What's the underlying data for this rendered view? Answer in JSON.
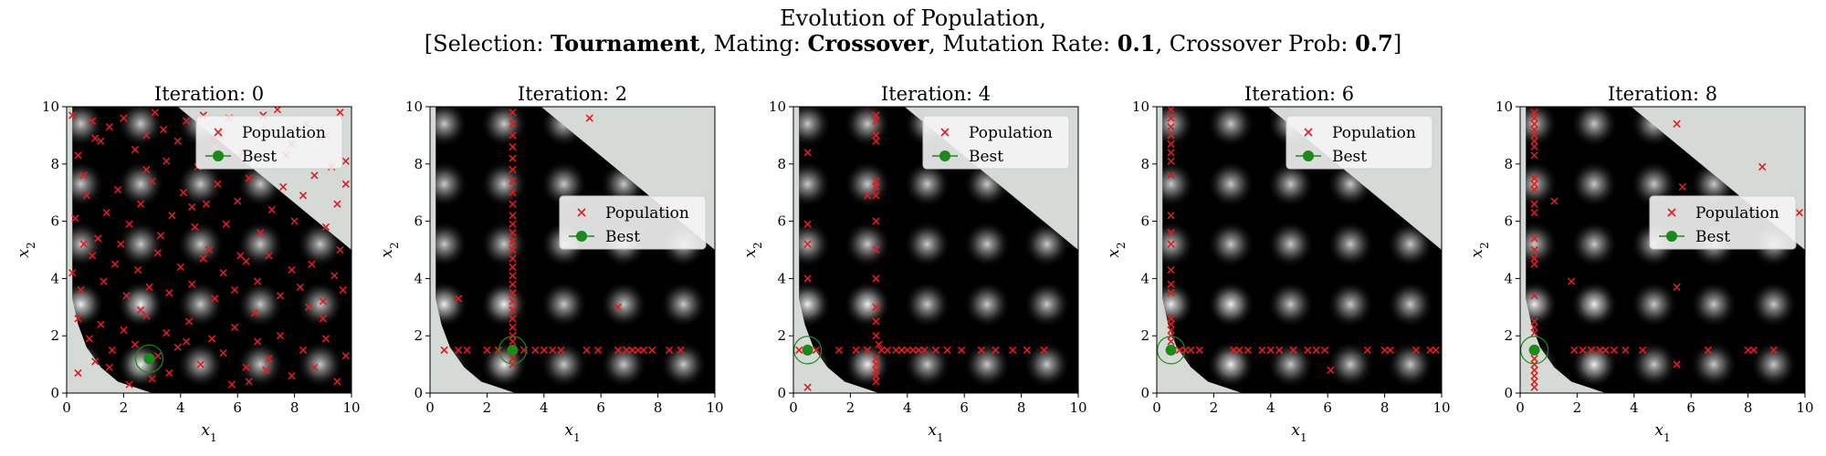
{
  "figure": {
    "title_line1": "Evolution of Population,",
    "subtitle": {
      "bracket_open": "[",
      "selection_label": "Selection: ",
      "selection_value": "Tournament",
      "mating_label": ", Mating: ",
      "mating_value": "Crossover",
      "mutation_label": ", Mutation Rate: ",
      "mutation_value": "0.1",
      "crossover_label": ", Crossover Prob: ",
      "crossover_value": "0.7",
      "bracket_close": "]"
    }
  },
  "colors": {
    "population": "#e41a1c",
    "best": "#1a8a1a",
    "infeasible": "#d6dad6"
  },
  "chart_data": [
    {
      "type": "scatter",
      "title": "Iteration: 0",
      "xlabel": "x1",
      "ylabel": "x2",
      "xlim": [
        0,
        10
      ],
      "ylim": [
        0,
        10
      ],
      "xticks": [
        0,
        2,
        4,
        6,
        8,
        10
      ],
      "yticks": [
        0,
        2,
        4,
        6,
        8,
        10
      ],
      "legend": {
        "entries": [
          "Population",
          "Best"
        ],
        "location": "top-right"
      },
      "best": [
        2.9,
        1.2
      ],
      "population": [
        [
          0.2,
          9.7
        ],
        [
          0.4,
          8.3
        ],
        [
          0.6,
          7.6
        ],
        [
          0.9,
          9.5
        ],
        [
          1.2,
          8.8
        ],
        [
          1.5,
          9.3
        ],
        [
          2.0,
          9.6
        ],
        [
          2.4,
          8.5
        ],
        [
          2.8,
          9.0
        ],
        [
          3.1,
          9.8
        ],
        [
          3.4,
          9.2
        ],
        [
          3.9,
          8.8
        ],
        [
          4.2,
          9.5
        ],
        [
          4.8,
          9.7
        ],
        [
          5.4,
          9.0
        ],
        [
          5.7,
          9.6
        ],
        [
          6.2,
          8.4
        ],
        [
          6.9,
          9.7
        ],
        [
          7.4,
          9.9
        ],
        [
          7.9,
          8.7
        ],
        [
          8.4,
          9.4
        ],
        [
          9.1,
          9.0
        ],
        [
          9.6,
          9.8
        ],
        [
          9.8,
          8.1
        ],
        [
          0.3,
          6.1
        ],
        [
          0.7,
          6.9
        ],
        [
          1.1,
          5.4
        ],
        [
          1.4,
          6.3
        ],
        [
          1.8,
          7.1
        ],
        [
          2.2,
          5.9
        ],
        [
          2.6,
          6.6
        ],
        [
          3.0,
          7.4
        ],
        [
          3.3,
          5.5
        ],
        [
          3.7,
          6.2
        ],
        [
          4.1,
          7.0
        ],
        [
          4.5,
          5.8
        ],
        [
          4.9,
          6.6
        ],
        [
          5.3,
          7.3
        ],
        [
          5.6,
          5.9
        ],
        [
          6.0,
          6.7
        ],
        [
          6.4,
          7.5
        ],
        [
          6.8,
          5.6
        ],
        [
          7.2,
          6.4
        ],
        [
          7.6,
          7.2
        ],
        [
          8.0,
          6.0
        ],
        [
          8.3,
          6.9
        ],
        [
          8.7,
          7.6
        ],
        [
          9.1,
          5.8
        ],
        [
          9.5,
          6.6
        ],
        [
          9.8,
          7.3
        ],
        [
          0.2,
          4.2
        ],
        [
          0.5,
          3.6
        ],
        [
          0.9,
          4.8
        ],
        [
          1.3,
          3.9
        ],
        [
          1.7,
          4.5
        ],
        [
          2.1,
          3.4
        ],
        [
          2.5,
          4.3
        ],
        [
          2.9,
          3.7
        ],
        [
          3.2,
          4.9
        ],
        [
          3.6,
          3.5
        ],
        [
          4.0,
          4.4
        ],
        [
          4.4,
          3.8
        ],
        [
          4.8,
          4.7
        ],
        [
          5.2,
          3.3
        ],
        [
          5.5,
          4.2
        ],
        [
          5.9,
          3.6
        ],
        [
          6.3,
          4.6
        ],
        [
          6.7,
          3.9
        ],
        [
          7.1,
          4.8
        ],
        [
          7.5,
          3.4
        ],
        [
          7.9,
          4.3
        ],
        [
          8.2,
          3.7
        ],
        [
          8.6,
          4.5
        ],
        [
          9.0,
          3.2
        ],
        [
          9.4,
          4.1
        ],
        [
          9.7,
          3.6
        ],
        [
          0.4,
          2.6
        ],
        [
          0.8,
          1.9
        ],
        [
          1.2,
          2.4
        ],
        [
          1.6,
          1.5
        ],
        [
          2.0,
          2.2
        ],
        [
          2.4,
          1.7
        ],
        [
          2.8,
          2.7
        ],
        [
          3.2,
          1.3
        ],
        [
          3.5,
          2.1
        ],
        [
          3.9,
          1.6
        ],
        [
          4.3,
          2.5
        ],
        [
          4.7,
          1.0
        ],
        [
          5.1,
          1.9
        ],
        [
          5.5,
          1.4
        ],
        [
          5.9,
          2.3
        ],
        [
          6.3,
          0.9
        ],
        [
          6.7,
          1.8
        ],
        [
          7.1,
          1.2
        ],
        [
          7.5,
          2.0
        ],
        [
          7.9,
          0.6
        ],
        [
          8.3,
          1.5
        ],
        [
          8.7,
          0.9
        ],
        [
          9.1,
          1.9
        ],
        [
          9.5,
          0.4
        ],
        [
          9.8,
          1.3
        ],
        [
          1.5,
          0.9
        ],
        [
          2.2,
          0.3
        ],
        [
          3.6,
          0.7
        ],
        [
          5.8,
          0.3
        ],
        [
          6.4,
          0.4
        ],
        [
          7.0,
          0.8
        ],
        [
          4.2,
          1.8
        ],
        [
          2.6,
          2.9
        ],
        [
          5.0,
          5.0
        ],
        [
          6.1,
          4.8
        ],
        [
          3.5,
          8.1
        ],
        [
          4.6,
          7.9
        ],
        [
          2.8,
          7.8
        ],
        [
          1.9,
          5.2
        ],
        [
          7.7,
          8.3
        ],
        [
          8.9,
          8.9
        ],
        [
          9.3,
          7.9
        ],
        [
          9.6,
          5.0
        ],
        [
          9.0,
          2.6
        ],
        [
          8.5,
          3.0
        ],
        [
          6.6,
          2.8
        ],
        [
          4.4,
          6.5
        ],
        [
          5.2,
          8.6
        ],
        [
          1.0,
          8.9
        ],
        [
          0.6,
          5.2
        ],
        [
          0.4,
          0.7
        ],
        [
          1.0,
          1.1
        ],
        [
          3.0,
          0.5
        ]
      ]
    },
    {
      "type": "scatter",
      "title": "Iteration: 2",
      "xlabel": "x1",
      "ylabel": "x2",
      "xlim": [
        0,
        10
      ],
      "ylim": [
        0,
        10
      ],
      "xticks": [
        0,
        2,
        4,
        6,
        8,
        10
      ],
      "yticks": [
        0,
        2,
        4,
        6,
        8,
        10
      ],
      "legend": {
        "entries": [
          "Population",
          "Best"
        ],
        "location": "center-right"
      },
      "best": [
        2.9,
        1.5
      ],
      "population": [
        [
          2.9,
          9.8
        ],
        [
          2.9,
          9.4
        ],
        [
          2.9,
          9.0
        ],
        [
          2.9,
          8.6
        ],
        [
          2.9,
          8.2
        ],
        [
          2.9,
          7.8
        ],
        [
          2.9,
          7.4
        ],
        [
          2.9,
          7.0
        ],
        [
          2.9,
          6.6
        ],
        [
          2.9,
          6.2
        ],
        [
          2.9,
          5.9
        ],
        [
          2.9,
          5.6
        ],
        [
          2.9,
          5.3
        ],
        [
          2.9,
          5.0
        ],
        [
          2.9,
          4.7
        ],
        [
          2.9,
          4.4
        ],
        [
          2.9,
          4.1
        ],
        [
          2.9,
          3.8
        ],
        [
          2.9,
          3.5
        ],
        [
          2.9,
          3.2
        ],
        [
          2.9,
          2.9
        ],
        [
          2.9,
          2.6
        ],
        [
          2.9,
          2.3
        ],
        [
          2.9,
          2.0
        ],
        [
          2.9,
          1.8
        ],
        [
          2.9,
          1.2
        ],
        [
          2.9,
          1.0
        ],
        [
          0.5,
          1.5
        ],
        [
          1.0,
          1.5
        ],
        [
          1.3,
          1.5
        ],
        [
          2.0,
          1.5
        ],
        [
          2.4,
          1.5
        ],
        [
          3.3,
          1.5
        ],
        [
          3.7,
          1.5
        ],
        [
          4.0,
          1.5
        ],
        [
          4.3,
          1.5
        ],
        [
          4.6,
          1.5
        ],
        [
          5.5,
          1.5
        ],
        [
          5.9,
          1.5
        ],
        [
          6.6,
          1.5
        ],
        [
          6.9,
          1.5
        ],
        [
          7.1,
          1.5
        ],
        [
          7.3,
          1.5
        ],
        [
          7.5,
          1.5
        ],
        [
          7.8,
          1.5
        ],
        [
          8.4,
          1.5
        ],
        [
          8.8,
          1.5
        ],
        [
          1.0,
          3.3
        ],
        [
          6.6,
          3.0
        ],
        [
          5.6,
          9.6
        ]
      ]
    },
    {
      "type": "scatter",
      "title": "Iteration: 4",
      "xlabel": "x1",
      "ylabel": "x2",
      "xlim": [
        0,
        10
      ],
      "ylim": [
        0,
        10
      ],
      "xticks": [
        0,
        2,
        4,
        6,
        8,
        10
      ],
      "yticks": [
        0,
        2,
        4,
        6,
        8,
        10
      ],
      "legend": {
        "entries": [
          "Population",
          "Best"
        ],
        "location": "top-right"
      },
      "best": [
        0.5,
        1.5
      ],
      "population": [
        [
          0.5,
          8.4
        ],
        [
          0.5,
          5.9
        ],
        [
          0.5,
          5.2
        ],
        [
          0.5,
          4.0
        ],
        [
          0.5,
          0.2
        ],
        [
          0.2,
          1.5
        ],
        [
          0.8,
          1.5
        ],
        [
          2.9,
          9.7
        ],
        [
          2.9,
          9.5
        ],
        [
          2.9,
          9.0
        ],
        [
          2.9,
          8.8
        ],
        [
          2.9,
          7.4
        ],
        [
          2.9,
          7.2
        ],
        [
          2.9,
          6.9
        ],
        [
          2.9,
          6.0
        ],
        [
          2.9,
          5.0
        ],
        [
          2.9,
          4.0
        ],
        [
          2.9,
          3.0
        ],
        [
          2.9,
          2.5
        ],
        [
          2.9,
          2.0
        ],
        [
          2.9,
          1.2
        ],
        [
          2.9,
          1.0
        ],
        [
          2.9,
          0.8
        ],
        [
          2.9,
          0.6
        ],
        [
          2.9,
          0.4
        ],
        [
          2.6,
          6.9
        ],
        [
          1.6,
          1.5
        ],
        [
          2.2,
          1.5
        ],
        [
          2.6,
          1.5
        ],
        [
          3.1,
          1.5
        ],
        [
          3.3,
          1.5
        ],
        [
          3.6,
          1.5
        ],
        [
          3.8,
          1.5
        ],
        [
          4.0,
          1.5
        ],
        [
          4.2,
          1.5
        ],
        [
          4.4,
          1.5
        ],
        [
          4.6,
          1.5
        ],
        [
          5.0,
          1.5
        ],
        [
          5.4,
          1.5
        ],
        [
          5.9,
          1.5
        ],
        [
          6.6,
          1.5
        ],
        [
          7.1,
          1.5
        ],
        [
          7.7,
          1.5
        ],
        [
          8.2,
          1.5
        ],
        [
          8.8,
          1.5
        ],
        [
          3.0,
          1.7
        ]
      ]
    },
    {
      "type": "scatter",
      "title": "Iteration: 6",
      "xlabel": "x1",
      "ylabel": "x2",
      "xlim": [
        0,
        10
      ],
      "ylim": [
        0,
        10
      ],
      "xticks": [
        0,
        2,
        4,
        6,
        8,
        10
      ],
      "yticks": [
        0,
        2,
        4,
        6,
        8,
        10
      ],
      "legend": {
        "entries": [
          "Population",
          "Best"
        ],
        "location": "top-right"
      },
      "best": [
        0.5,
        1.5
      ],
      "population": [
        [
          0.5,
          9.9
        ],
        [
          0.5,
          9.6
        ],
        [
          0.5,
          9.3
        ],
        [
          0.5,
          9.0
        ],
        [
          0.5,
          8.7
        ],
        [
          0.5,
          8.4
        ],
        [
          0.5,
          8.1
        ],
        [
          0.5,
          7.6
        ],
        [
          0.5,
          6.2
        ],
        [
          0.5,
          5.6
        ],
        [
          0.5,
          5.2
        ],
        [
          0.5,
          4.3
        ],
        [
          0.5,
          3.8
        ],
        [
          0.5,
          3.5
        ],
        [
          0.5,
          2.6
        ],
        [
          0.5,
          2.4
        ],
        [
          0.5,
          2.2
        ],
        [
          0.5,
          2.0
        ],
        [
          0.5,
          1.8
        ],
        [
          0.8,
          1.5
        ],
        [
          1.0,
          1.5
        ],
        [
          1.2,
          1.5
        ],
        [
          1.5,
          1.5
        ],
        [
          2.7,
          1.5
        ],
        [
          2.9,
          1.5
        ],
        [
          3.2,
          1.5
        ],
        [
          3.7,
          1.5
        ],
        [
          4.0,
          1.5
        ],
        [
          4.3,
          1.5
        ],
        [
          4.8,
          1.5
        ],
        [
          5.3,
          1.5
        ],
        [
          5.6,
          1.5
        ],
        [
          5.9,
          1.5
        ],
        [
          6.1,
          0.8
        ],
        [
          7.4,
          1.5
        ],
        [
          8.0,
          1.5
        ],
        [
          8.2,
          1.5
        ],
        [
          9.1,
          1.5
        ],
        [
          9.6,
          1.5
        ],
        [
          9.8,
          1.5
        ]
      ]
    },
    {
      "type": "scatter",
      "title": "Iteration: 8",
      "xlabel": "x1",
      "ylabel": "x2",
      "xlim": [
        0,
        10
      ],
      "ylim": [
        0,
        10
      ],
      "xticks": [
        0,
        2,
        4,
        6,
        8,
        10
      ],
      "yticks": [
        0,
        2,
        4,
        6,
        8,
        10
      ],
      "legend": {
        "entries": [
          "Population",
          "Best"
        ],
        "location": "center-right"
      },
      "best": [
        0.5,
        1.5
      ],
      "population": [
        [
          0.5,
          9.8
        ],
        [
          0.5,
          9.6
        ],
        [
          0.5,
          9.4
        ],
        [
          0.5,
          9.2
        ],
        [
          0.5,
          9.0
        ],
        [
          0.5,
          8.8
        ],
        [
          0.5,
          8.6
        ],
        [
          0.5,
          8.3
        ],
        [
          0.5,
          7.5
        ],
        [
          0.5,
          7.3
        ],
        [
          0.5,
          7.1
        ],
        [
          0.5,
          6.6
        ],
        [
          0.5,
          6.3
        ],
        [
          0.5,
          5.4
        ],
        [
          0.5,
          5.0
        ],
        [
          0.5,
          4.7
        ],
        [
          0.5,
          4.5
        ],
        [
          0.5,
          3.4
        ],
        [
          0.5,
          2.5
        ],
        [
          0.5,
          2.3
        ],
        [
          0.5,
          2.1
        ],
        [
          0.5,
          1.2
        ],
        [
          0.5,
          1.0
        ],
        [
          0.5,
          0.8
        ],
        [
          0.5,
          0.6
        ],
        [
          0.5,
          0.4
        ],
        [
          0.5,
          0.2
        ],
        [
          1.2,
          6.7
        ],
        [
          1.8,
          3.9
        ],
        [
          1.9,
          1.5
        ],
        [
          2.2,
          1.5
        ],
        [
          2.5,
          1.5
        ],
        [
          2.8,
          1.5
        ],
        [
          3.0,
          1.5
        ],
        [
          3.3,
          1.5
        ],
        [
          3.7,
          1.5
        ],
        [
          4.3,
          1.5
        ],
        [
          5.5,
          1.0
        ],
        [
          5.5,
          3.7
        ],
        [
          5.5,
          9.4
        ],
        [
          5.7,
          7.2
        ],
        [
          6.6,
          1.5
        ],
        [
          8.0,
          1.5
        ],
        [
          8.2,
          1.5
        ],
        [
          8.5,
          7.9
        ],
        [
          8.9,
          1.5
        ],
        [
          9.8,
          6.3
        ]
      ]
    }
  ]
}
